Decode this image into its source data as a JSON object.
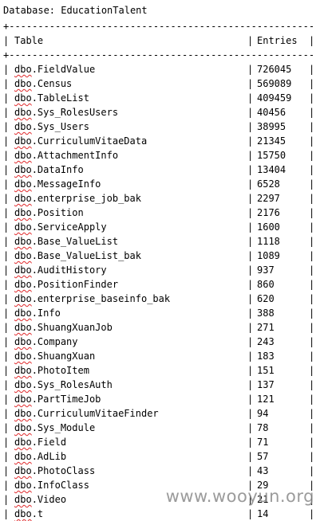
{
  "database_line": "Database: EducationTalent",
  "header": {
    "table": "Table",
    "entries": "Entries"
  },
  "schema_prefix": "dbo",
  "rows": [
    {
      "name": "FieldValue",
      "entries": "726045"
    },
    {
      "name": "Census",
      "entries": "569089"
    },
    {
      "name": "TableList",
      "entries": "409459"
    },
    {
      "name": "Sys_RolesUsers",
      "entries": "40456"
    },
    {
      "name": "Sys_Users",
      "entries": "38995"
    },
    {
      "name": "CurriculumVitaeData",
      "entries": "21345"
    },
    {
      "name": "AttachmentInfo",
      "entries": "15750"
    },
    {
      "name": "DataInfo",
      "entries": "13404"
    },
    {
      "name": "MessageInfo",
      "entries": "6528"
    },
    {
      "name": "enterprise_job_bak",
      "entries": "2297"
    },
    {
      "name": "Position",
      "entries": "2176"
    },
    {
      "name": "ServiceApply",
      "entries": "1600"
    },
    {
      "name": "Base_ValueList",
      "entries": "1118"
    },
    {
      "name": "Base_ValueList_bak",
      "entries": "1089"
    },
    {
      "name": "AuditHistory",
      "entries": "937"
    },
    {
      "name": "PositionFinder",
      "entries": "860"
    },
    {
      "name": "enterprise_baseinfo_bak",
      "entries": "620"
    },
    {
      "name": "Info",
      "entries": "388"
    },
    {
      "name": "ShuangXuanJob",
      "entries": "271"
    },
    {
      "name": "Company",
      "entries": "243"
    },
    {
      "name": "ShuangXuan",
      "entries": "183"
    },
    {
      "name": "PhotoItem",
      "entries": "151"
    },
    {
      "name": "Sys_RolesAuth",
      "entries": "137"
    },
    {
      "name": "PartTimeJob",
      "entries": "121"
    },
    {
      "name": "CurriculumVitaeFinder",
      "entries": "94"
    },
    {
      "name": "Sys_Module",
      "entries": "78"
    },
    {
      "name": "Field",
      "entries": "71"
    },
    {
      "name": "AdLib",
      "entries": "57"
    },
    {
      "name": "PhotoClass",
      "entries": "43"
    },
    {
      "name": "InfoClass",
      "entries": "29"
    },
    {
      "name": "Video",
      "entries": "21"
    },
    {
      "name": "t",
      "entries": "14"
    }
  ],
  "watermark": "www.wooyun.org"
}
